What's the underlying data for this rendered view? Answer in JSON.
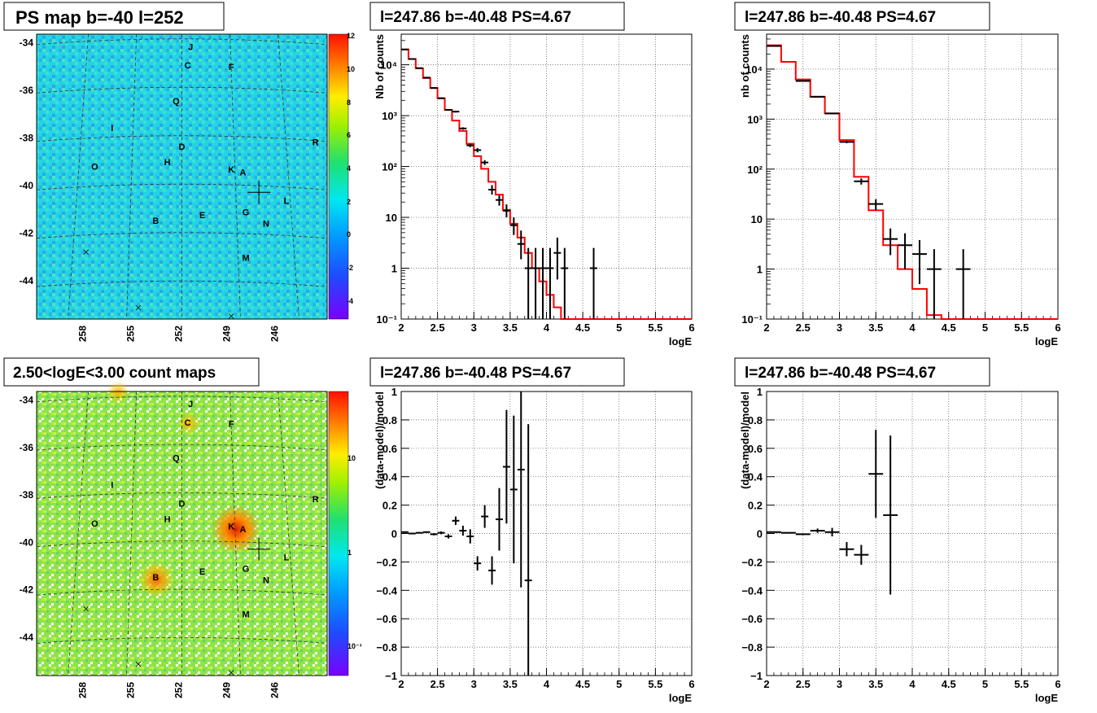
{
  "panels": {
    "map_ps": {
      "title": "PS map b=-40 l=252",
      "colorbar_ticks": [
        "12",
        "10",
        "8",
        "6",
        "4",
        "2",
        "0",
        "-2",
        "-4"
      ]
    },
    "map_count": {
      "title": "2.50<logE<3.00 count maps",
      "colorbar_ticks": [
        "10",
        "1",
        "10⁻¹"
      ]
    }
  },
  "map_axes": {
    "y_ticks": [
      "-34",
      "-36",
      "-38",
      "-40",
      "-42",
      "-44"
    ],
    "x_ticks": [
      "258",
      "255",
      "252",
      "249",
      "246"
    ]
  },
  "sources": [
    "J",
    "C",
    "F",
    "Q",
    "I",
    "D",
    "H",
    "O",
    "K",
    "A",
    "R",
    "L",
    "B",
    "E",
    "G",
    "N",
    "M"
  ],
  "chart_data": [
    {
      "type": "line",
      "title": "l=247.86 b=-40.48 PS=4.67",
      "xlabel": "logE",
      "ylabel": "Nb of counts",
      "xlim": [
        2,
        6
      ],
      "ylim": [
        0.1,
        40000
      ],
      "yscale": "log",
      "x_ticks": [
        "2",
        "2.5",
        "3",
        "3.5",
        "4",
        "4.5",
        "5",
        "5.5",
        "6"
      ],
      "y_ticks": [
        "10⁻¹",
        "1",
        "10",
        "10²",
        "10³",
        "10⁴"
      ],
      "grid": true,
      "series": [
        {
          "kind": "model-step",
          "color": "#ff0000",
          "edges": [
            2.0,
            2.1,
            2.2,
            2.3,
            2.4,
            2.5,
            2.6,
            2.7,
            2.8,
            2.9,
            3.0,
            3.1,
            3.2,
            3.3,
            3.4,
            3.5,
            3.6,
            3.7,
            3.8,
            3.9,
            4.0,
            4.1,
            4.2,
            4.3,
            6.0
          ],
          "values": [
            20000,
            13000,
            8500,
            5500,
            3500,
            2200,
            1300,
            800,
            500,
            280,
            160,
            90,
            50,
            28,
            14,
            7.5,
            4,
            2,
            1,
            0.55,
            0.3,
            0.17,
            0.1,
            0.05
          ]
        },
        {
          "kind": "data",
          "x": [
            2.05,
            2.15,
            2.25,
            2.35,
            2.45,
            2.55,
            2.65,
            2.75,
            2.85,
            2.95,
            3.05,
            3.15,
            3.25,
            3.35,
            3.45,
            3.55,
            3.65,
            3.75,
            3.85,
            3.95,
            4.05,
            4.15,
            4.25,
            4.65
          ],
          "y": [
            20000,
            13000,
            8600,
            5600,
            3500,
            2200,
            1300,
            1200,
            560,
            260,
            210,
            120,
            35,
            22,
            13.5,
            7,
            3,
            1,
            1,
            1,
            1,
            2,
            1,
            1
          ],
          "ylo": [
            19850,
            12880,
            8500,
            5520,
            3440,
            2150,
            1260,
            1150,
            530,
            240,
            190,
            107,
            28,
            17,
            10,
            4.5,
            1.5,
            0.1,
            0.1,
            0.1,
            0.1,
            0.6,
            0.1,
            0.1
          ],
          "yhi": [
            20150,
            13120,
            8700,
            5680,
            3560,
            2250,
            1340,
            1250,
            590,
            280,
            230,
            133,
            43,
            27,
            18,
            10,
            5.5,
            2.5,
            2.5,
            2.5,
            2.5,
            4,
            2.5,
            2.5
          ]
        }
      ]
    },
    {
      "type": "line",
      "title": "l=247.86 b=-40.48 PS=4.67",
      "xlabel": "logE",
      "ylabel": "nb of counts",
      "xlim": [
        2,
        6
      ],
      "ylim": [
        0.1,
        50000
      ],
      "yscale": "log",
      "x_ticks": [
        "2",
        "2.5",
        "3",
        "3.5",
        "4",
        "4.5",
        "5",
        "5.5",
        "6"
      ],
      "y_ticks": [
        "10⁻¹",
        "1",
        "10",
        "10²",
        "10³",
        "10⁴"
      ],
      "grid": true,
      "series": [
        {
          "kind": "model-step",
          "color": "#ff0000",
          "edges": [
            2.0,
            2.2,
            2.4,
            2.6,
            2.8,
            3.0,
            3.2,
            3.4,
            3.6,
            3.8,
            4.0,
            4.2,
            4.4,
            6.0
          ],
          "values": [
            30000,
            14000,
            6200,
            2800,
            1300,
            380,
            70,
            15,
            3,
            1,
            0.4,
            0.12,
            0.1
          ]
        },
        {
          "kind": "data",
          "x": [
            2.1,
            2.5,
            2.7,
            2.9,
            3.1,
            3.3,
            3.5,
            3.7,
            3.9,
            4.1,
            4.3,
            4.7
          ],
          "y": [
            29000,
            5800,
            2800,
            1300,
            350,
            57,
            20,
            4,
            3,
            2,
            1,
            1
          ],
          "ylo": [
            28800,
            5720,
            2750,
            1260,
            330,
            49,
            15,
            1.9,
            1,
            0.5,
            0.1,
            0.1
          ],
          "yhi": [
            29200,
            5880,
            2850,
            1340,
            370,
            65,
            25,
            6.5,
            5.2,
            3.8,
            2.5,
            2.5
          ]
        }
      ]
    },
    {
      "type": "scatter",
      "title": "l=247.86 b=-40.48 PS=4.67",
      "xlabel": "logE",
      "ylabel": "(data-model)/model",
      "xlim": [
        2,
        6
      ],
      "ylim": [
        -1,
        1
      ],
      "x_ticks": [
        "2",
        "2.5",
        "3",
        "3.5",
        "4",
        "4.5",
        "5",
        "5.5",
        "6"
      ],
      "y_ticks": [
        "−1",
        "−0.8",
        "−0.6",
        "−0.4",
        "−0.2",
        "0",
        "0.2",
        "0.4",
        "0.6",
        "0.8",
        "1"
      ],
      "grid": true,
      "series": [
        {
          "kind": "data",
          "xerr": 0.05,
          "x": [
            2.05,
            2.15,
            2.25,
            2.35,
            2.45,
            2.55,
            2.65,
            2.75,
            2.85,
            2.95,
            3.05,
            3.15,
            3.25,
            3.35,
            3.45,
            3.55,
            3.65,
            3.75
          ],
          "y": [
            0.01,
            0.0,
            0.005,
            0.01,
            -0.005,
            0.005,
            -0.02,
            0.09,
            0.02,
            -0.02,
            -0.21,
            0.12,
            -0.26,
            0.1,
            0.47,
            0.31,
            0.45,
            -0.33
          ],
          "err": [
            0.005,
            0.005,
            0.005,
            0.005,
            0.008,
            0.01,
            0.015,
            0.03,
            0.035,
            0.05,
            0.05,
            0.08,
            0.1,
            0.22,
            0.4,
            0.52,
            0.83,
            1.1
          ]
        }
      ]
    },
    {
      "type": "scatter",
      "title": "l=247.86 b=-40.48 PS=4.67",
      "xlabel": "logE",
      "ylabel": "(data-model)/model",
      "xlim": [
        2,
        6
      ],
      "ylim": [
        -1,
        1
      ],
      "x_ticks": [
        "2",
        "2.5",
        "3",
        "3.5",
        "4",
        "4.5",
        "5",
        "5.5",
        "6"
      ],
      "y_ticks": [
        "−1",
        "−0.8",
        "−0.6",
        "−0.4",
        "−0.2",
        "0",
        "0.2",
        "0.4",
        "0.6",
        "0.8",
        "1"
      ],
      "grid": true,
      "series": [
        {
          "kind": "data",
          "xerr": 0.1,
          "x": [
            2.1,
            2.3,
            2.5,
            2.7,
            2.9,
            3.1,
            3.3,
            3.5,
            3.7
          ],
          "y": [
            0.01,
            0.005,
            -0.005,
            0.02,
            0.01,
            -0.11,
            -0.15,
            0.42,
            0.13
          ],
          "err": [
            0.004,
            0.004,
            0.006,
            0.015,
            0.03,
            0.05,
            0.07,
            0.31,
            0.56
          ]
        }
      ]
    }
  ]
}
